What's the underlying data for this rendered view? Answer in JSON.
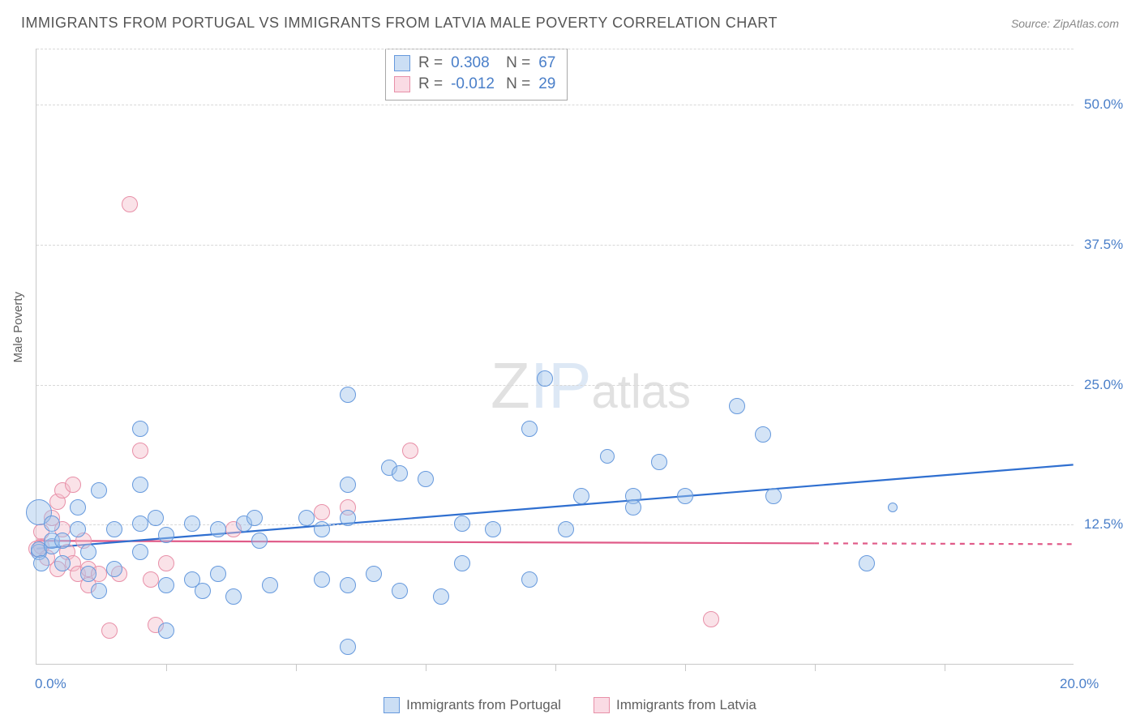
{
  "title": "IMMIGRANTS FROM PORTUGAL VS IMMIGRANTS FROM LATVIA MALE POVERTY CORRELATION CHART",
  "source_label": "Source: ",
  "source_value": "ZipAtlas.com",
  "ylabel": "Male Poverty",
  "watermark": {
    "z": "Z",
    "ip": "IP",
    "atlas": "atlas"
  },
  "chart": {
    "type": "scatter",
    "xlim": [
      0,
      20
    ],
    "ylim": [
      0,
      55
    ],
    "xtick_major": [
      0,
      20
    ],
    "xtick_minor": [
      2.5,
      5,
      7.5,
      10,
      12.5,
      15,
      17.5
    ],
    "ygrid": [
      12.5,
      25,
      37.5,
      50
    ],
    "x_labels": {
      "min": "0.0%",
      "max": "20.0%"
    },
    "y_labels": [
      "12.5%",
      "25.0%",
      "37.5%",
      "50.0%"
    ],
    "background": "#ffffff",
    "grid_color": "#d8d8d8",
    "axis_color": "#c8c8c8",
    "label_fontsize": 17,
    "label_color": "#4a7fc9",
    "colors": {
      "blue_stroke": "#6699dd",
      "blue_fill": "rgba(160,195,235,0.45)",
      "pink_stroke": "#e890a8",
      "pink_fill": "rgba(245,190,205,0.45)",
      "blue_line": "#2f6fd0",
      "pink_line": "#e05a88"
    },
    "base_radius": 10
  },
  "stats": {
    "r_label": "R  =",
    "n_label": "N  =",
    "series": [
      {
        "color": "blue",
        "r": "0.308",
        "n": "67"
      },
      {
        "color": "pink",
        "r": "-0.012",
        "n": "29"
      }
    ]
  },
  "legend": {
    "items": [
      {
        "color": "blue",
        "label": "Immigrants from Portugal"
      },
      {
        "color": "pink",
        "label": "Immigrants from Latvia"
      }
    ]
  },
  "trend_lines": {
    "blue": {
      "x1": 0,
      "y1": 10.3,
      "x2": 20,
      "y2": 17.8,
      "solid_until_x": 20,
      "width": 2.2
    },
    "pink": {
      "x1": 0,
      "y1": 11.0,
      "x2": 20,
      "y2": 10.7,
      "solid_until_x": 15,
      "width": 2.2
    }
  },
  "series": {
    "blue": [
      {
        "x": 0.05,
        "y": 13.5,
        "s": 1.6
      },
      {
        "x": 0.05,
        "y": 10.0,
        "s": 1.0
      },
      {
        "x": 0.05,
        "y": 10.2,
        "s": 1.0
      },
      {
        "x": 0.1,
        "y": 9.0,
        "s": 1.0
      },
      {
        "x": 0.3,
        "y": 12.5,
        "s": 1.0
      },
      {
        "x": 0.3,
        "y": 10.5,
        "s": 1.0
      },
      {
        "x": 0.3,
        "y": 11.0,
        "s": 1.0
      },
      {
        "x": 0.5,
        "y": 11.0,
        "s": 1.0
      },
      {
        "x": 0.5,
        "y": 9.0,
        "s": 1.0
      },
      {
        "x": 0.8,
        "y": 14.0,
        "s": 1.0
      },
      {
        "x": 0.8,
        "y": 12.0,
        "s": 1.0
      },
      {
        "x": 1.0,
        "y": 10.0,
        "s": 1.0
      },
      {
        "x": 1.0,
        "y": 8.0,
        "s": 1.0
      },
      {
        "x": 1.2,
        "y": 15.5,
        "s": 1.0
      },
      {
        "x": 1.2,
        "y": 6.5,
        "s": 1.0
      },
      {
        "x": 1.5,
        "y": 12.0,
        "s": 1.0
      },
      {
        "x": 1.5,
        "y": 8.5,
        "s": 1.0
      },
      {
        "x": 2.0,
        "y": 21.0,
        "s": 1.0
      },
      {
        "x": 2.0,
        "y": 16.0,
        "s": 1.0
      },
      {
        "x": 2.0,
        "y": 12.5,
        "s": 1.0
      },
      {
        "x": 2.0,
        "y": 10.0,
        "s": 1.0
      },
      {
        "x": 2.3,
        "y": 13.0,
        "s": 1.0
      },
      {
        "x": 2.5,
        "y": 11.5,
        "s": 1.0
      },
      {
        "x": 2.5,
        "y": 7.0,
        "s": 1.0
      },
      {
        "x": 2.5,
        "y": 3.0,
        "s": 1.0
      },
      {
        "x": 3.0,
        "y": 12.5,
        "s": 1.0
      },
      {
        "x": 3.0,
        "y": 7.5,
        "s": 1.0
      },
      {
        "x": 3.2,
        "y": 6.5,
        "s": 1.0
      },
      {
        "x": 3.5,
        "y": 12.0,
        "s": 1.0
      },
      {
        "x": 3.5,
        "y": 8.0,
        "s": 1.0
      },
      {
        "x": 3.8,
        "y": 6.0,
        "s": 1.0
      },
      {
        "x": 4.0,
        "y": 12.5,
        "s": 1.0
      },
      {
        "x": 4.2,
        "y": 13.0,
        "s": 1.0
      },
      {
        "x": 4.3,
        "y": 11.0,
        "s": 1.0
      },
      {
        "x": 4.5,
        "y": 7.0,
        "s": 1.0
      },
      {
        "x": 5.2,
        "y": 13.0,
        "s": 1.0
      },
      {
        "x": 5.5,
        "y": 12.0,
        "s": 1.0
      },
      {
        "x": 5.5,
        "y": 7.5,
        "s": 1.0
      },
      {
        "x": 6.0,
        "y": 24.0,
        "s": 1.0
      },
      {
        "x": 6.0,
        "y": 16.0,
        "s": 1.0
      },
      {
        "x": 6.0,
        "y": 13.0,
        "s": 1.0
      },
      {
        "x": 6.0,
        "y": 7.0,
        "s": 1.0
      },
      {
        "x": 6.0,
        "y": 1.5,
        "s": 1.0
      },
      {
        "x": 6.5,
        "y": 8.0,
        "s": 1.0
      },
      {
        "x": 6.8,
        "y": 17.5,
        "s": 1.0
      },
      {
        "x": 7.0,
        "y": 17.0,
        "s": 1.0
      },
      {
        "x": 7.0,
        "y": 6.5,
        "s": 1.0
      },
      {
        "x": 7.5,
        "y": 16.5,
        "s": 1.0
      },
      {
        "x": 7.8,
        "y": 6.0,
        "s": 1.0
      },
      {
        "x": 8.2,
        "y": 12.5,
        "s": 1.0
      },
      {
        "x": 8.2,
        "y": 9.0,
        "s": 1.0
      },
      {
        "x": 8.8,
        "y": 12.0,
        "s": 1.0
      },
      {
        "x": 9.5,
        "y": 21.0,
        "s": 1.0
      },
      {
        "x": 9.5,
        "y": 7.5,
        "s": 1.0
      },
      {
        "x": 9.8,
        "y": 25.5,
        "s": 1.0
      },
      {
        "x": 10.2,
        "y": 12.0,
        "s": 1.0
      },
      {
        "x": 10.5,
        "y": 15.0,
        "s": 1.0
      },
      {
        "x": 11.0,
        "y": 18.5,
        "s": 0.9
      },
      {
        "x": 11.5,
        "y": 15.0,
        "s": 1.0
      },
      {
        "x": 11.5,
        "y": 14.0,
        "s": 1.0
      },
      {
        "x": 12.0,
        "y": 18.0,
        "s": 1.0
      },
      {
        "x": 12.5,
        "y": 15.0,
        "s": 1.0
      },
      {
        "x": 13.5,
        "y": 23.0,
        "s": 1.0
      },
      {
        "x": 14.0,
        "y": 20.5,
        "s": 1.0
      },
      {
        "x": 14.2,
        "y": 15.0,
        "s": 1.0
      },
      {
        "x": 16.0,
        "y": 9.0,
        "s": 1.0
      },
      {
        "x": 16.5,
        "y": 14.0,
        "s": 0.6
      }
    ],
    "pink": [
      {
        "x": 0.0,
        "y": 10.3,
        "s": 1.0
      },
      {
        "x": 0.1,
        "y": 10.5,
        "s": 1.0
      },
      {
        "x": 0.1,
        "y": 11.8,
        "s": 1.0
      },
      {
        "x": 0.2,
        "y": 9.5,
        "s": 1.0
      },
      {
        "x": 0.3,
        "y": 13.0,
        "s": 1.0
      },
      {
        "x": 0.4,
        "y": 14.5,
        "s": 1.0
      },
      {
        "x": 0.4,
        "y": 8.5,
        "s": 1.0
      },
      {
        "x": 0.5,
        "y": 15.5,
        "s": 1.0
      },
      {
        "x": 0.5,
        "y": 12.0,
        "s": 1.0
      },
      {
        "x": 0.6,
        "y": 10.0,
        "s": 1.0
      },
      {
        "x": 0.7,
        "y": 16.0,
        "s": 1.0
      },
      {
        "x": 0.7,
        "y": 9.0,
        "s": 1.0
      },
      {
        "x": 0.8,
        "y": 8.0,
        "s": 1.0
      },
      {
        "x": 0.9,
        "y": 11.0,
        "s": 1.0
      },
      {
        "x": 1.0,
        "y": 8.5,
        "s": 1.0
      },
      {
        "x": 1.0,
        "y": 7.0,
        "s": 1.0
      },
      {
        "x": 1.2,
        "y": 8.0,
        "s": 1.0
      },
      {
        "x": 1.4,
        "y": 3.0,
        "s": 1.0
      },
      {
        "x": 1.6,
        "y": 8.0,
        "s": 1.0
      },
      {
        "x": 1.8,
        "y": 41.0,
        "s": 1.0
      },
      {
        "x": 2.0,
        "y": 19.0,
        "s": 1.0
      },
      {
        "x": 2.2,
        "y": 7.5,
        "s": 1.0
      },
      {
        "x": 2.3,
        "y": 3.5,
        "s": 1.0
      },
      {
        "x": 2.5,
        "y": 9.0,
        "s": 1.0
      },
      {
        "x": 3.8,
        "y": 12.0,
        "s": 1.0
      },
      {
        "x": 5.5,
        "y": 13.5,
        "s": 1.0
      },
      {
        "x": 6.0,
        "y": 14.0,
        "s": 1.0
      },
      {
        "x": 7.2,
        "y": 19.0,
        "s": 1.0
      },
      {
        "x": 13.0,
        "y": 4.0,
        "s": 1.0
      }
    ]
  }
}
